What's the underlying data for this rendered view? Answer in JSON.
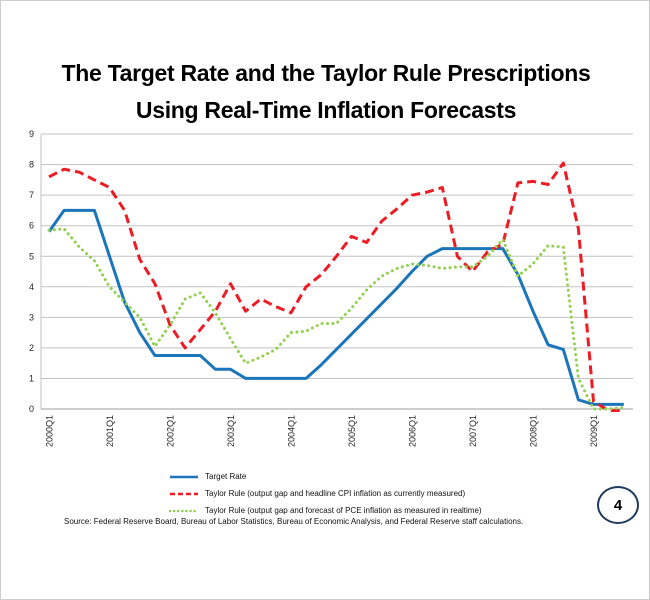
{
  "slide": {
    "title_line1": "The Target Rate and the Taylor Rule Prescriptions",
    "title_line2": "Using Real-Time Inflation Forecasts",
    "page_number": "4",
    "source": "Source:  Federal Reserve Board, Bureau of Labor Statistics,  Bureau of Economic Analysis, and Federal Reserve staff calculations."
  },
  "colors": {
    "target_rate": "#1b75bb",
    "taylor_cpi": "#ed1c24",
    "taylor_pce": "#92d050",
    "gridline": "#c3c3c3",
    "axis_line": "#9e9e9e",
    "tick_text": "#262626",
    "page_circle_border": "#1f3a5f"
  },
  "chart_data": {
    "type": "line",
    "title": "The Target Rate and the Taylor Rule Prescriptions Using Real-Time Inflation Forecasts",
    "xlabel": "",
    "ylabel": "",
    "x_start": "2000Q1",
    "x_end": "2009Q3",
    "frequency": "quarterly",
    "x_tick_labels": [
      "2000Q1",
      "2001Q1",
      "2002Q1",
      "2003Q1",
      "2004Q1",
      "2005Q1",
      "2006Q1",
      "2007Q1",
      "2008Q1",
      "2009Q1"
    ],
    "y_ticks": [
      0,
      1,
      2,
      3,
      4,
      5,
      6,
      7,
      8,
      9
    ],
    "ylim": [
      0,
      9
    ],
    "grid": true,
    "legend_position": "bottom",
    "series": [
      {
        "name": "Target Rate",
        "style": "solid",
        "color": "#1b75bb",
        "values": [
          5.8,
          6.5,
          6.5,
          6.5,
          5.0,
          3.5,
          2.5,
          1.75,
          1.75,
          1.75,
          1.75,
          1.3,
          1.3,
          1.0,
          1.0,
          1.0,
          1.0,
          1.0,
          1.45,
          1.95,
          2.45,
          2.95,
          3.45,
          3.95,
          4.5,
          5.0,
          5.25,
          5.25,
          5.25,
          5.25,
          5.25,
          4.4,
          3.2,
          2.1,
          1.95,
          0.3,
          0.15,
          0.15,
          0.15
        ]
      },
      {
        "name": "Taylor Rule (output gap and headline CPI inflation as currently measured)",
        "style": "dashed",
        "color": "#ed1c24",
        "values": [
          7.6,
          7.85,
          7.75,
          7.5,
          7.25,
          6.5,
          4.9,
          4.1,
          2.75,
          2.0,
          2.6,
          3.2,
          4.1,
          3.2,
          3.6,
          3.35,
          3.15,
          4.0,
          4.4,
          5.0,
          5.65,
          5.45,
          6.15,
          6.55,
          7.0,
          7.1,
          7.25,
          5.0,
          4.5,
          5.15,
          5.4,
          7.4,
          7.45,
          7.35,
          8.05,
          5.9,
          0.25,
          -0.05,
          -0.05
        ]
      },
      {
        "name": "Taylor Rule (output gap and forecast of PCE inflation  as measured in realtime)",
        "style": "dotted",
        "color": "#92d050",
        "values": [
          5.85,
          5.9,
          5.3,
          4.85,
          4.0,
          3.5,
          3.0,
          2.05,
          2.75,
          3.6,
          3.8,
          3.15,
          2.3,
          1.5,
          1.7,
          1.95,
          2.5,
          2.55,
          2.8,
          2.8,
          3.3,
          3.9,
          4.35,
          4.6,
          4.75,
          4.7,
          4.6,
          4.65,
          4.65,
          5.0,
          5.55,
          4.35,
          4.75,
          5.35,
          5.3,
          1.0,
          0.0,
          0.0,
          0.05
        ]
      }
    ]
  }
}
